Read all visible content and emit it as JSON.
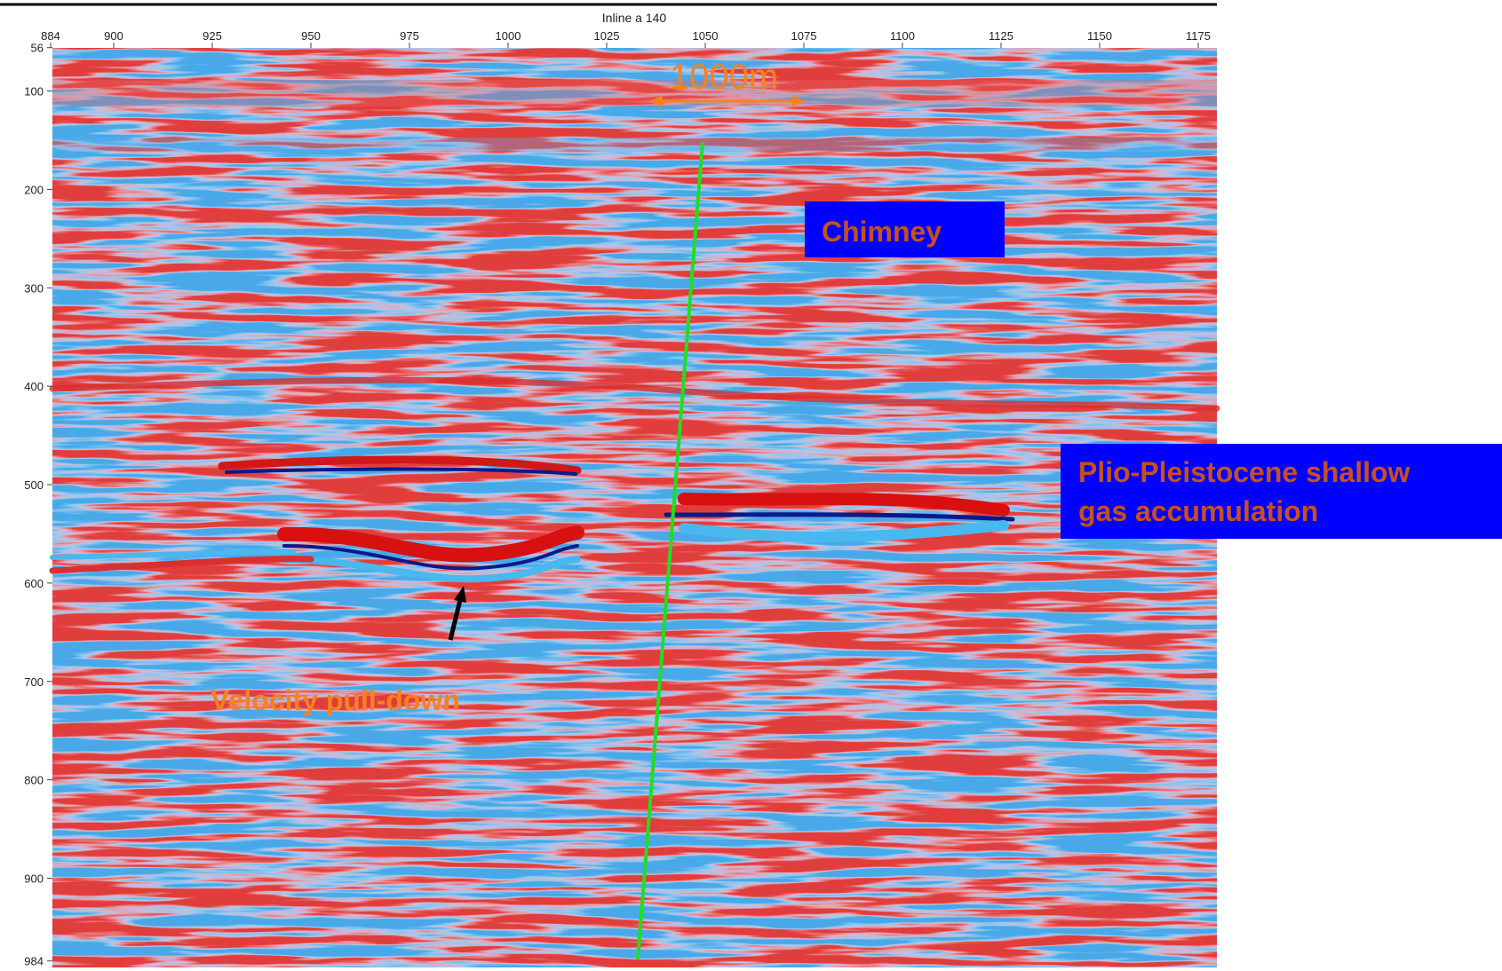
{
  "section": {
    "title": "Inline a 140",
    "xticks": [
      884,
      900,
      925,
      950,
      975,
      1000,
      1025,
      1050,
      1075,
      1100,
      1125,
      1150,
      1175
    ],
    "yticks": [
      56,
      100,
      200,
      300,
      400,
      500,
      600,
      700,
      800,
      900,
      984
    ]
  },
  "annotations": {
    "scale": "1000m",
    "chimney": "Chimney",
    "gas": [
      "Plio-Pleistocene shallow",
      "gas accumulation"
    ],
    "pulldown": "Velocity pull-down"
  }
}
